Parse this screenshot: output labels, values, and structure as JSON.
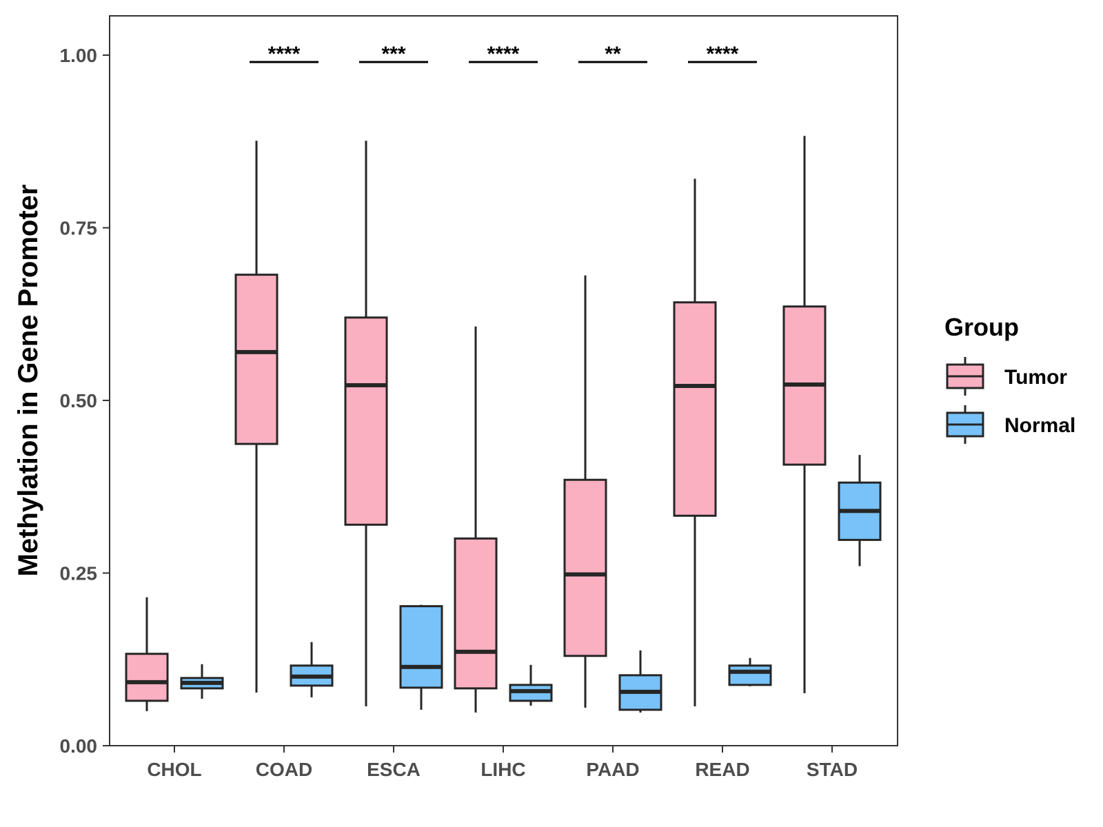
{
  "chart_data": {
    "type": "boxplot",
    "ylabel": "Methylation in Gene Promoter",
    "xlabel": "",
    "ylim": [
      0,
      1.05
    ],
    "yticks": [
      0.0,
      0.25,
      0.5,
      0.75,
      1.0
    ],
    "ytick_labels": [
      "0.00",
      "0.25",
      "0.50",
      "0.75",
      "1.00"
    ],
    "categories": [
      "CHOL",
      "COAD",
      "ESCA",
      "LIHC",
      "PAAD",
      "READ",
      "STAD"
    ],
    "legend": {
      "title": "Group",
      "position": "right",
      "items": [
        {
          "label": "Tumor",
          "color": "#FBB0C2"
        },
        {
          "label": "Normal",
          "color": "#78C2F9"
        }
      ]
    },
    "series": [
      {
        "name": "Tumor",
        "color": "#FBB0C2",
        "boxes": [
          {
            "whisker_low": 0.05,
            "q1": 0.065,
            "median": 0.092,
            "q3": 0.133,
            "whisker_high": 0.215
          },
          {
            "whisker_low": 0.077,
            "q1": 0.437,
            "median": 0.57,
            "q3": 0.682,
            "whisker_high": 0.876
          },
          {
            "whisker_low": 0.057,
            "q1": 0.32,
            "median": 0.522,
            "q3": 0.62,
            "whisker_high": 0.876
          },
          {
            "whisker_low": 0.048,
            "q1": 0.083,
            "median": 0.136,
            "q3": 0.3,
            "whisker_high": 0.607
          },
          {
            "whisker_low": 0.055,
            "q1": 0.13,
            "median": 0.248,
            "q3": 0.385,
            "whisker_high": 0.681
          },
          {
            "whisker_low": 0.057,
            "q1": 0.333,
            "median": 0.521,
            "q3": 0.642,
            "whisker_high": 0.821
          },
          {
            "whisker_low": 0.076,
            "q1": 0.407,
            "median": 0.523,
            "q3": 0.636,
            "whisker_high": 0.883
          }
        ]
      },
      {
        "name": "Normal",
        "color": "#78C2F9",
        "boxes": [
          {
            "whisker_low": 0.068,
            "q1": 0.083,
            "median": 0.091,
            "q3": 0.098,
            "whisker_high": 0.118
          },
          {
            "whisker_low": 0.07,
            "q1": 0.087,
            "median": 0.1,
            "q3": 0.116,
            "whisker_high": 0.15
          },
          {
            "whisker_low": 0.052,
            "q1": 0.084,
            "median": 0.114,
            "q3": 0.202,
            "whisker_high": 0.204
          },
          {
            "whisker_low": 0.058,
            "q1": 0.065,
            "median": 0.079,
            "q3": 0.088,
            "whisker_high": 0.117
          },
          {
            "whisker_low": 0.048,
            "q1": 0.052,
            "median": 0.078,
            "q3": 0.102,
            "whisker_high": 0.138
          },
          {
            "whisker_low": 0.086,
            "q1": 0.088,
            "median": 0.107,
            "q3": 0.116,
            "whisker_high": 0.127
          },
          {
            "whisker_low": 0.26,
            "q1": 0.298,
            "median": 0.34,
            "q3": 0.381,
            "whisker_high": 0.421
          }
        ]
      }
    ],
    "significance": [
      {
        "category": "COAD",
        "label": "****",
        "y": 0.99
      },
      {
        "category": "ESCA",
        "label": "***",
        "y": 0.99
      },
      {
        "category": "LIHC",
        "label": "****",
        "y": 0.99
      },
      {
        "category": "PAAD",
        "label": "**",
        "y": 0.99
      },
      {
        "category": "READ",
        "label": "****",
        "y": 0.99
      }
    ]
  }
}
